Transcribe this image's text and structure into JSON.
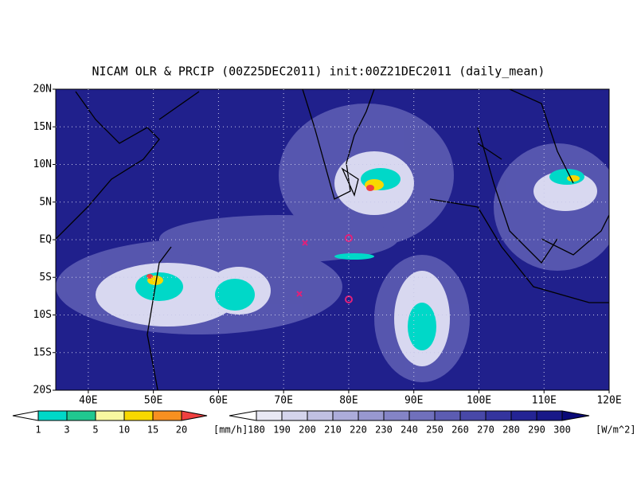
{
  "title": "NICAM OLR & PRCIP (00Z25DEC2011) init:00Z21DEC2011 (daily_mean)",
  "lat_labels": [
    "20N",
    "15N",
    "10N",
    "5N",
    "EQ",
    "5S",
    "10S",
    "15S",
    "20S"
  ],
  "lon_labels": [
    "40E",
    "50E",
    "60E",
    "70E",
    "80E",
    "90E",
    "100E",
    "110E",
    "120E"
  ],
  "precip_legend": {
    "labels": [
      "1",
      "3",
      "5",
      "10",
      "15",
      "20"
    ],
    "unit": "[mm/h]",
    "colors": [
      "#ffffff",
      "#00d8c8",
      "#20c890",
      "#f8f8a0",
      "#f8d800",
      "#f89020",
      "#f04040"
    ]
  },
  "olr_legend": {
    "labels": [
      "180",
      "190",
      "200",
      "210",
      "220",
      "230",
      "240",
      "250",
      "260",
      "270",
      "280",
      "290",
      "300"
    ],
    "unit": "[W/m^2]",
    "colors": [
      "#ffffff",
      "#e8e8f4",
      "#d4d4ec",
      "#c0c0e2",
      "#acacda",
      "#9898d0",
      "#8484c6",
      "#7070bc",
      "#5c5cb2",
      "#4848a8",
      "#34349e",
      "#242494",
      "#181888",
      "#0a0a78"
    ]
  }
}
